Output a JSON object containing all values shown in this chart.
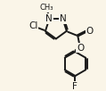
{
  "bg_color": "#faf5e8",
  "bond_color": "#1a1a1a",
  "line_width": 1.4,
  "font_size": 7.5,
  "figsize": [
    1.19,
    1.02
  ],
  "dpi": 100,
  "xlim": [
    0,
    119
  ],
  "ylim": [
    0,
    102
  ]
}
